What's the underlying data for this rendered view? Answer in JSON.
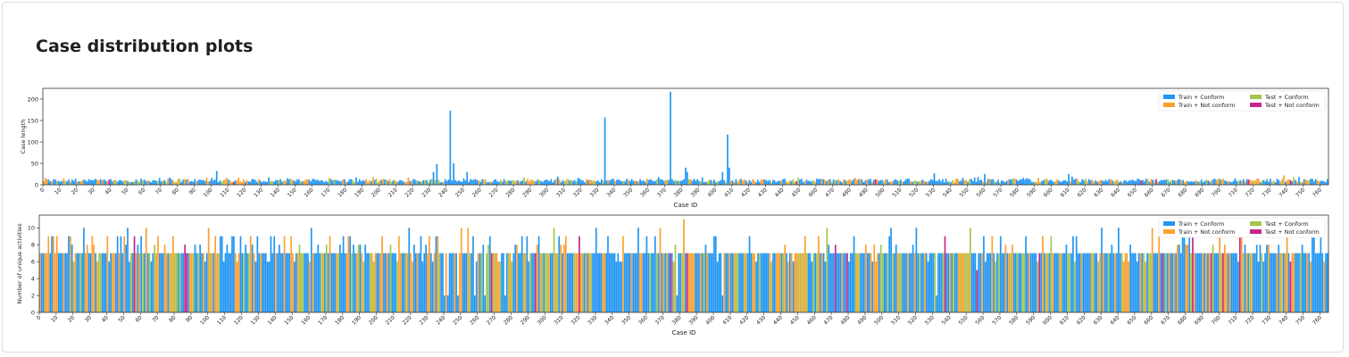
{
  "page": {
    "title": "Case distribution plots"
  },
  "colors": {
    "train_conform": "#2196f3",
    "train_not_conform": "#ff9f2d",
    "test_conform": "#a4c64a",
    "test_not_conform": "#c8258a"
  },
  "chart_data": [
    {
      "type": "bar",
      "xlabel": "Case ID",
      "ylabel": "Case length",
      "xlim": [
        0,
        765
      ],
      "ylim": [
        0,
        225
      ],
      "yticks": [
        0,
        50,
        100,
        150,
        200
      ],
      "xtick_step": 10,
      "legend": {
        "placement": "top-right",
        "entries": [
          "Train + Conform",
          "Train + Not conform",
          "Test + Conform",
          "Test + Not conform"
        ]
      },
      "baseline": {
        "default": 10,
        "note": "most cases have length between 5 and 20"
      },
      "peaks": [
        {
          "x": 103,
          "y": 32,
          "series": "Train + Conform"
        },
        {
          "x": 232,
          "y": 30,
          "series": "Train + Conform"
        },
        {
          "x": 234,
          "y": 48,
          "series": "Train + Conform"
        },
        {
          "x": 242,
          "y": 173,
          "series": "Train + Conform"
        },
        {
          "x": 244,
          "y": 50,
          "series": "Train + Conform"
        },
        {
          "x": 252,
          "y": 30,
          "series": "Train + Conform"
        },
        {
          "x": 334,
          "y": 157,
          "series": "Train + Conform"
        },
        {
          "x": 373,
          "y": 217,
          "series": "Train + Conform"
        },
        {
          "x": 382,
          "y": 40,
          "series": "Train + Conform"
        },
        {
          "x": 383,
          "y": 30,
          "series": "Train + Conform"
        },
        {
          "x": 404,
          "y": 30,
          "series": "Train + Conform"
        },
        {
          "x": 407,
          "y": 117,
          "series": "Train + Conform"
        },
        {
          "x": 408,
          "y": 40,
          "series": "Train + Conform"
        },
        {
          "x": 530,
          "y": 27,
          "series": "Train + Conform"
        },
        {
          "x": 560,
          "y": 25,
          "series": "Train + Conform"
        },
        {
          "x": 610,
          "y": 25,
          "series": "Train + Conform"
        },
        {
          "x": 738,
          "y": 22,
          "series": "Train + Not conform"
        }
      ]
    },
    {
      "type": "bar",
      "xlabel": "Case ID",
      "ylabel": "Number of unique activities",
      "xlim": [
        0,
        765
      ],
      "ylim": [
        0,
        11.5
      ],
      "yticks": [
        0,
        2,
        4,
        6,
        8,
        10
      ],
      "xtick_step": 10,
      "legend": {
        "placement": "top-right",
        "entries": [
          "Train + Conform",
          "Train + Not conform",
          "Test + Conform",
          "Test + Not conform"
        ]
      },
      "baseline": {
        "default": 7,
        "note": "most cases have 7 unique activities"
      },
      "peaks": [
        {
          "x": 5,
          "y": 9,
          "series": "Train + Not conform"
        },
        {
          "x": 8,
          "y": 9,
          "series": "Train + Not conform"
        },
        {
          "x": 10,
          "y": 9,
          "series": "Train + Not conform"
        },
        {
          "x": 18,
          "y": 9,
          "series": "Train + Not conform"
        },
        {
          "x": 26,
          "y": 10,
          "series": "Train + Conform"
        },
        {
          "x": 31,
          "y": 9,
          "series": "Train + Not conform"
        },
        {
          "x": 40,
          "y": 9,
          "series": "Train + Not conform"
        },
        {
          "x": 50,
          "y": 9,
          "series": "Train + Not conform"
        },
        {
          "x": 52,
          "y": 10,
          "series": "Train + Conform"
        },
        {
          "x": 60,
          "y": 9,
          "series": "Train + Conform"
        },
        {
          "x": 63,
          "y": 10,
          "series": "Train + Not conform"
        },
        {
          "x": 70,
          "y": 9,
          "series": "Train + Not conform"
        },
        {
          "x": 79,
          "y": 9,
          "series": "Train + Not conform"
        },
        {
          "x": 86,
          "y": 8,
          "series": "Test + Not conform"
        },
        {
          "x": 95,
          "y": 8,
          "series": "Train + Conform"
        },
        {
          "x": 100,
          "y": 10,
          "series": "Train + Not conform"
        },
        {
          "x": 104,
          "y": 9,
          "series": "Train + Not conform"
        },
        {
          "x": 115,
          "y": 9,
          "series": "Train + Conform"
        },
        {
          "x": 125,
          "y": 9,
          "series": "Train + Not conform"
        },
        {
          "x": 137,
          "y": 9,
          "series": "Train + Conform"
        },
        {
          "x": 145,
          "y": 9,
          "series": "Train + Not conform"
        },
        {
          "x": 149,
          "y": 9,
          "series": "Train + Not conform"
        },
        {
          "x": 161,
          "y": 10,
          "series": "Train + Conform"
        },
        {
          "x": 172,
          "y": 9,
          "series": "Train + Not conform"
        },
        {
          "x": 184,
          "y": 9,
          "series": "Train + Conform"
        },
        {
          "x": 203,
          "y": 9,
          "series": "Train + Not conform"
        },
        {
          "x": 213,
          "y": 9,
          "series": "Train + Not conform"
        },
        {
          "x": 219,
          "y": 10,
          "series": "Train + Conform"
        },
        {
          "x": 226,
          "y": 9,
          "series": "Train + Conform"
        },
        {
          "x": 231,
          "y": 9,
          "series": "Train + Not conform"
        },
        {
          "x": 236,
          "y": 9,
          "series": "Train + Not conform"
        },
        {
          "x": 240,
          "y": 2,
          "series": "Train + Conform"
        },
        {
          "x": 242,
          "y": 2,
          "series": "Train + Conform"
        },
        {
          "x": 248,
          "y": 2,
          "series": "Train + Conform"
        },
        {
          "x": 250,
          "y": 10,
          "series": "Train + Not conform"
        },
        {
          "x": 254,
          "y": 10,
          "series": "Train + Not conform"
        },
        {
          "x": 258,
          "y": 2,
          "series": "Train + Conform"
        },
        {
          "x": 264,
          "y": 2,
          "series": "Train + Conform"
        },
        {
          "x": 268,
          "y": 7,
          "series": "Test + Not conform"
        },
        {
          "x": 276,
          "y": 2,
          "series": "Train + Conform"
        },
        {
          "x": 283,
          "y": 8,
          "series": "Train + Not conform"
        },
        {
          "x": 296,
          "y": 9,
          "series": "Train + Conform"
        },
        {
          "x": 305,
          "y": 10,
          "series": "Test + Conform"
        },
        {
          "x": 312,
          "y": 9,
          "series": "Train + Not conform"
        },
        {
          "x": 320,
          "y": 9,
          "series": "Test + Not conform"
        },
        {
          "x": 330,
          "y": 10,
          "series": "Train + Conform"
        },
        {
          "x": 346,
          "y": 9,
          "series": "Train + Not conform"
        },
        {
          "x": 355,
          "y": 10,
          "series": "Train + Conform"
        },
        {
          "x": 360,
          "y": 9,
          "series": "Train + Conform"
        },
        {
          "x": 368,
          "y": 10,
          "series": "Train + Not conform"
        },
        {
          "x": 378,
          "y": 2,
          "series": "Train + Conform"
        },
        {
          "x": 382,
          "y": 11,
          "series": "Train + Not conform"
        },
        {
          "x": 400,
          "y": 9,
          "series": "Train + Conform"
        },
        {
          "x": 405,
          "y": 2,
          "series": "Train + Conform"
        },
        {
          "x": 454,
          "y": 9,
          "series": "Train + Not conform"
        },
        {
          "x": 462,
          "y": 9,
          "series": "Train + Not conform"
        },
        {
          "x": 467,
          "y": 10,
          "series": "Test + Conform"
        },
        {
          "x": 480,
          "y": 6,
          "series": "Train + Conform"
        },
        {
          "x": 490,
          "y": 8,
          "series": "Train + Not conform"
        },
        {
          "x": 505,
          "y": 10,
          "series": "Train + Conform"
        },
        {
          "x": 520,
          "y": 10,
          "series": "Train + Conform"
        },
        {
          "x": 532,
          "y": 2,
          "series": "Train + Conform"
        },
        {
          "x": 537,
          "y": 9,
          "series": "Test + Not conform"
        },
        {
          "x": 552,
          "y": 10,
          "series": "Test + Conform"
        },
        {
          "x": 556,
          "y": 5,
          "series": "Test + Not conform"
        },
        {
          "x": 560,
          "y": 9,
          "series": "Train + Conform"
        },
        {
          "x": 565,
          "y": 9,
          "series": "Train + Not conform"
        },
        {
          "x": 573,
          "y": 8,
          "series": "Train + Not conform"
        },
        {
          "x": 585,
          "y": 9,
          "series": "Train + Conform"
        },
        {
          "x": 600,
          "y": 9,
          "series": "Test + Conform"
        },
        {
          "x": 615,
          "y": 9,
          "series": "Train + Conform"
        },
        {
          "x": 630,
          "y": 10,
          "series": "Train + Conform"
        },
        {
          "x": 640,
          "y": 10,
          "series": "Train + Conform"
        },
        {
          "x": 646,
          "y": 6,
          "series": "Train + Not conform"
        },
        {
          "x": 660,
          "y": 10,
          "series": "Train + Not conform"
        },
        {
          "x": 675,
          "y": 8,
          "series": "Train + Not conform"
        },
        {
          "x": 684,
          "y": 9,
          "series": "Test + Not conform"
        },
        {
          "x": 700,
          "y": 9,
          "series": "Train + Not conform"
        },
        {
          "x": 712,
          "y": 9,
          "series": "Test + Not conform"
        },
        {
          "x": 722,
          "y": 8,
          "series": "Train + Conform"
        },
        {
          "x": 740,
          "y": 9,
          "series": "Train + Not conform"
        },
        {
          "x": 755,
          "y": 9,
          "series": "Train + Conform"
        }
      ]
    }
  ]
}
